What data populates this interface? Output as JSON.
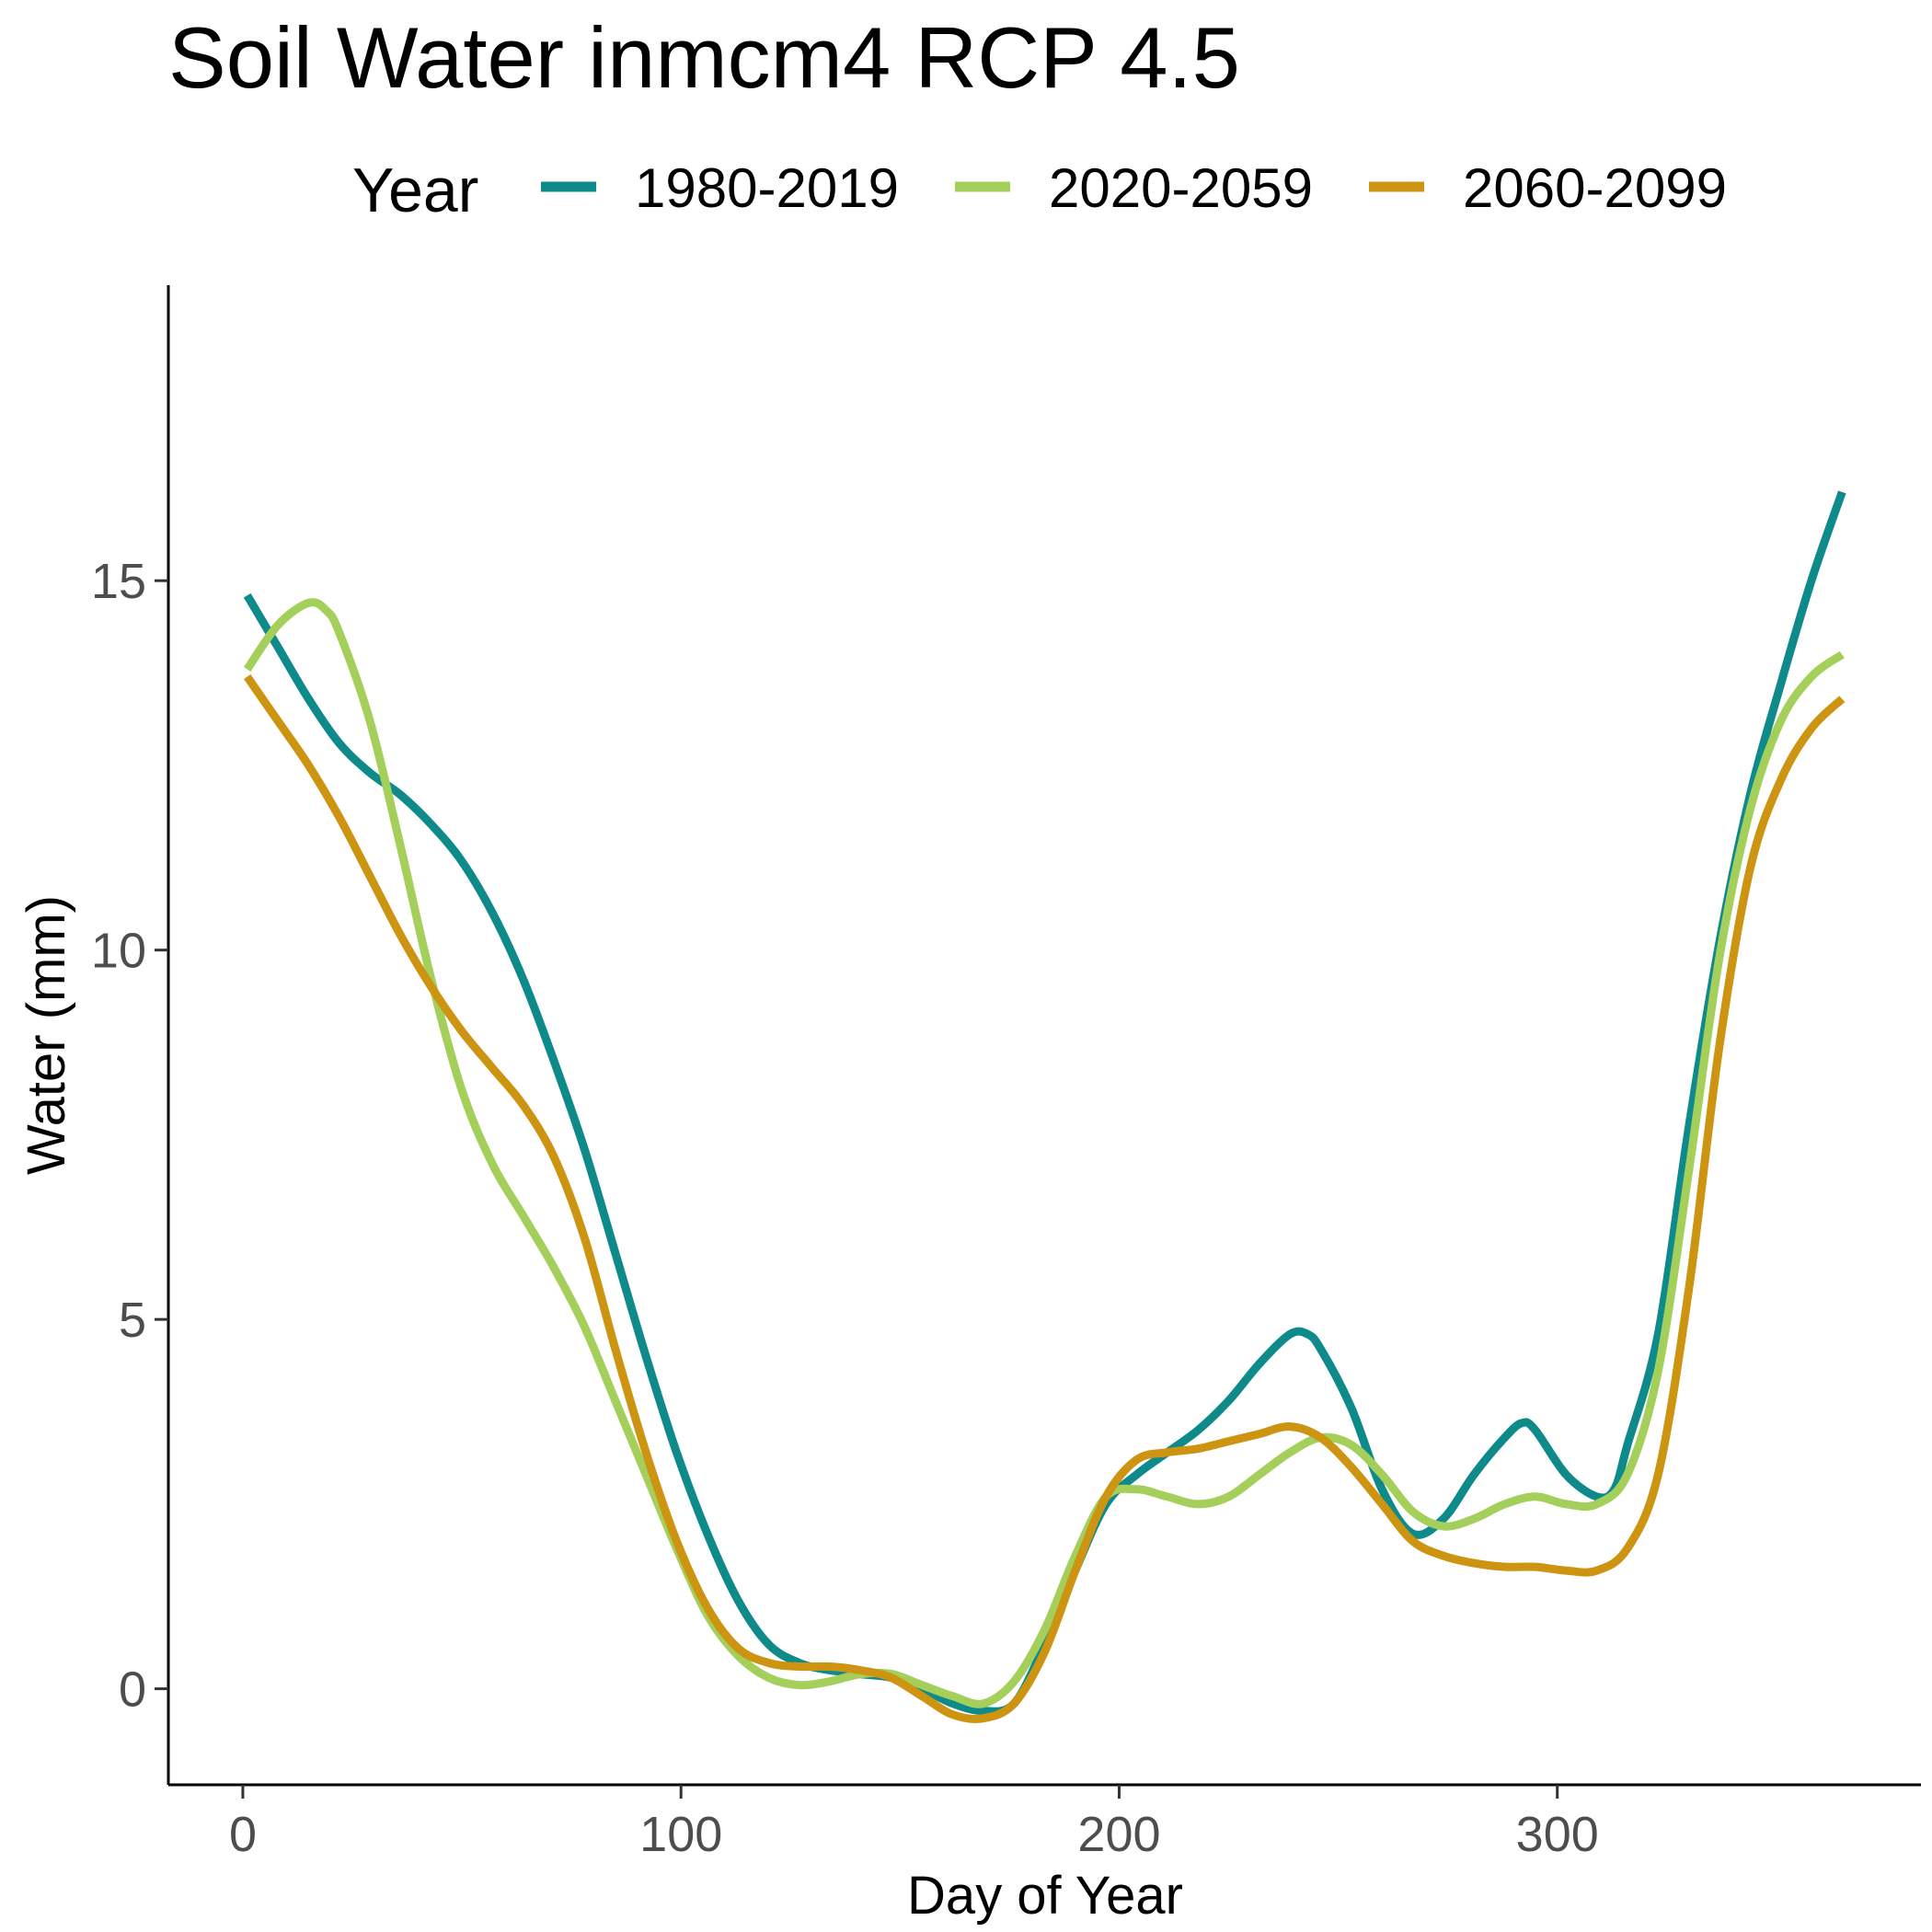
{
  "chart_data": {
    "type": "line",
    "title": "Soil Water inmcm4 RCP 4.5",
    "xlabel": "Day of Year",
    "ylabel": "Water (mm)",
    "xlim": [
      -17,
      383
    ],
    "ylim": [
      -1.3,
      19.0
    ],
    "x_ticks": [
      0,
      100,
      200,
      300
    ],
    "y_ticks": [
      0,
      5,
      10,
      15
    ],
    "grid": false,
    "legend": {
      "title": "Year",
      "position": "top"
    },
    "series": [
      {
        "name": "1980-2019",
        "color": "#0e8a8a",
        "x": [
          1,
          8,
          15,
          22,
          29,
          36,
          43,
          50,
          57,
          64,
          71,
          78,
          85,
          92,
          99,
          106,
          113,
          120,
          127,
          134,
          141,
          148,
          155,
          162,
          169,
          176,
          183,
          190,
          197,
          204,
          211,
          218,
          225,
          232,
          239,
          243,
          246,
          253,
          260,
          267,
          274,
          281,
          288,
          292,
          295,
          302,
          309,
          313,
          316,
          323,
          330,
          337,
          344,
          351,
          358,
          365
        ],
        "values": [
          14.8,
          14.1,
          13.4,
          12.8,
          12.4,
          12.1,
          11.7,
          11.2,
          10.5,
          9.6,
          8.5,
          7.3,
          5.9,
          4.5,
          3.2,
          2.1,
          1.2,
          0.6,
          0.35,
          0.25,
          0.2,
          0.15,
          0.0,
          -0.2,
          -0.3,
          -0.2,
          0.6,
          1.6,
          2.5,
          2.9,
          3.2,
          3.5,
          3.9,
          4.4,
          4.8,
          4.8,
          4.6,
          3.8,
          2.7,
          2.1,
          2.3,
          2.9,
          3.4,
          3.6,
          3.5,
          2.9,
          2.6,
          2.7,
          3.3,
          4.8,
          7.6,
          10.1,
          12.1,
          13.6,
          15.0,
          16.2
        ]
      },
      {
        "name": "2020-2059",
        "color": "#a3cf5a",
        "x": [
          1,
          8,
          15,
          19,
          22,
          29,
          36,
          43,
          50,
          57,
          64,
          71,
          78,
          85,
          92,
          99,
          106,
          113,
          120,
          127,
          134,
          141,
          148,
          155,
          162,
          169,
          176,
          183,
          190,
          197,
          204,
          211,
          218,
          225,
          232,
          239,
          246,
          253,
          260,
          267,
          274,
          281,
          288,
          295,
          302,
          309,
          316,
          323,
          330,
          337,
          344,
          351,
          358,
          365
        ],
        "values": [
          13.8,
          14.4,
          14.7,
          14.6,
          14.3,
          13.1,
          11.4,
          9.6,
          8.1,
          7.1,
          6.4,
          5.7,
          4.9,
          3.9,
          2.9,
          1.9,
          1.0,
          0.45,
          0.15,
          0.05,
          0.1,
          0.2,
          0.2,
          0.05,
          -0.1,
          -0.2,
          0.1,
          0.8,
          1.8,
          2.6,
          2.7,
          2.6,
          2.5,
          2.6,
          2.9,
          3.2,
          3.4,
          3.3,
          2.9,
          2.4,
          2.2,
          2.3,
          2.5,
          2.6,
          2.5,
          2.5,
          2.9,
          4.3,
          7.0,
          9.9,
          11.9,
          13.1,
          13.7,
          14.0
        ]
      },
      {
        "name": "2060-2099",
        "color": "#cc9411",
        "x": [
          1,
          8,
          15,
          22,
          29,
          36,
          43,
          50,
          57,
          64,
          71,
          78,
          85,
          92,
          99,
          106,
          113,
          120,
          127,
          134,
          141,
          148,
          155,
          162,
          169,
          176,
          183,
          190,
          197,
          204,
          211,
          218,
          225,
          232,
          239,
          246,
          253,
          260,
          267,
          274,
          281,
          288,
          295,
          302,
          309,
          316,
          323,
          330,
          337,
          344,
          351,
          358,
          365
        ],
        "values": [
          13.7,
          13.1,
          12.5,
          11.8,
          11.0,
          10.2,
          9.5,
          8.9,
          8.4,
          7.9,
          7.2,
          6.1,
          4.6,
          3.2,
          2.0,
          1.1,
          0.55,
          0.35,
          0.3,
          0.3,
          0.25,
          0.15,
          -0.1,
          -0.35,
          -0.4,
          -0.2,
          0.5,
          1.6,
          2.6,
          3.1,
          3.2,
          3.25,
          3.35,
          3.45,
          3.55,
          3.4,
          3.0,
          2.5,
          2.0,
          1.8,
          1.7,
          1.65,
          1.65,
          1.6,
          1.6,
          1.9,
          2.9,
          5.4,
          8.7,
          11.1,
          12.3,
          13.0,
          13.4
        ]
      }
    ]
  }
}
